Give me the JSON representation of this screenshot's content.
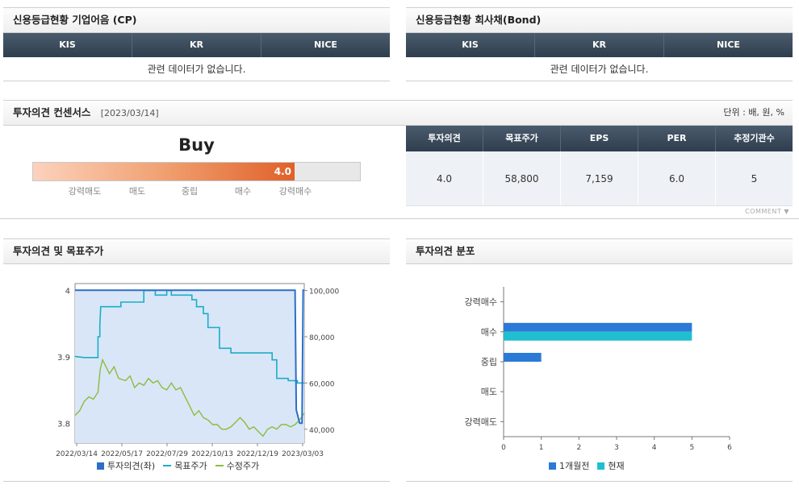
{
  "cp": {
    "title": "신용등급현황 기업어음 (CP)",
    "headers": [
      "KIS",
      "KR",
      "NICE"
    ],
    "empty": "관련 데이터가 없습니다."
  },
  "bond": {
    "title": "신용등급현황 회사채(Bond)",
    "headers": [
      "KIS",
      "KR",
      "NICE"
    ],
    "empty": "관련 데이터가 없습니다."
  },
  "consensus": {
    "title": "투자의견 컨센서스",
    "date": "[2023/03/14]",
    "unit": "단위 : 배, 원, %",
    "rating_text": "Buy",
    "score": "4.0",
    "score_value": 4.0,
    "score_max": 5,
    "scale_labels": [
      "강력매도",
      "매도",
      "중립",
      "매수",
      "강력매수"
    ],
    "table_headers": [
      "투자의견",
      "목표주가",
      "EPS",
      "PER",
      "추정기관수"
    ],
    "table_values": [
      "4.0",
      "58,800",
      "7,159",
      "6.0",
      "5"
    ],
    "comment_label": "COMMENT"
  },
  "opinion_chart": {
    "title": "투자의견 및 목표주가",
    "legend": [
      "투자의견(좌)",
      "목표주가",
      "수정주가"
    ]
  },
  "dist_chart": {
    "title": "투자의견 분포",
    "legend": [
      "1개월전",
      "현재"
    ]
  },
  "chart_data": [
    {
      "type": "line",
      "x_ticks": [
        "2022/03/14",
        "2022/05/17",
        "2022/07/29",
        "2022/10/13",
        "2022/12/19",
        "2023/03/03"
      ],
      "y_left": {
        "ticks": [
          "4",
          "3.9",
          "3.8"
        ],
        "ylim": [
          3.77,
          4.01
        ]
      },
      "y_right": {
        "ticks": [
          "100,000",
          "80,000",
          "60,000",
          "40,000"
        ],
        "ylim": [
          34000,
          103000
        ]
      },
      "colors": {
        "opinion": "#2b6fc8",
        "target": "#1aaec6",
        "price": "#8cbc3c",
        "area": "#d9e6f7"
      },
      "series": [
        {
          "name": "투자의견(좌)",
          "axis": "left",
          "points": [
            [
              0,
              4.0
            ],
            [
              0.96,
              4.0
            ],
            [
              0.965,
              3.82
            ],
            [
              0.98,
              3.8
            ],
            [
              0.99,
              3.8
            ],
            [
              0.995,
              4.0
            ],
            [
              1,
              4.0
            ]
          ]
        },
        {
          "name": "목표주가",
          "axis": "right",
          "points": [
            [
              0,
              71500
            ],
            [
              0.04,
              71000
            ],
            [
              0.1,
              71000
            ],
            [
              0.1,
              73000
            ],
            [
              0.1,
              80000
            ],
            [
              0.108,
              80000
            ],
            [
              0.108,
              85000
            ],
            [
              0.112,
              93000
            ],
            [
              0.2,
              93000
            ],
            [
              0.2,
              95000
            ],
            [
              0.3,
              95000
            ],
            [
              0.3,
              100000
            ],
            [
              0.35,
              100000
            ],
            [
              0.35,
              98000
            ],
            [
              0.4,
              98000
            ],
            [
              0.4,
              100000
            ],
            [
              0.42,
              100000
            ],
            [
              0.42,
              98000
            ],
            [
              0.51,
              98000
            ],
            [
              0.51,
              96000
            ],
            [
              0.53,
              96000
            ],
            [
              0.53,
              93000
            ],
            [
              0.56,
              93000
            ],
            [
              0.56,
              90000
            ],
            [
              0.58,
              90000
            ],
            [
              0.58,
              84000
            ],
            [
              0.63,
              84000
            ],
            [
              0.63,
              75000
            ],
            [
              0.68,
              75000
            ],
            [
              0.68,
              73000
            ],
            [
              0.86,
              73000
            ],
            [
              0.86,
              70000
            ],
            [
              0.88,
              70000
            ],
            [
              0.88,
              62000
            ],
            [
              0.93,
              62000
            ],
            [
              0.93,
              61000
            ],
            [
              0.97,
              61000
            ],
            [
              0.97,
              60000
            ],
            [
              1,
              60000
            ]
          ]
        },
        {
          "name": "수정주가",
          "axis": "right",
          "points": [
            [
              0,
              46000
            ],
            [
              0.02,
              48000
            ],
            [
              0.04,
              52000
            ],
            [
              0.06,
              54000
            ],
            [
              0.08,
              53000
            ],
            [
              0.1,
              56000
            ],
            [
              0.11,
              66000
            ],
            [
              0.12,
              70000
            ],
            [
              0.13,
              68000
            ],
            [
              0.15,
              64000
            ],
            [
              0.17,
              67000
            ],
            [
              0.19,
              62000
            ],
            [
              0.22,
              61000
            ],
            [
              0.24,
              63000
            ],
            [
              0.26,
              58000
            ],
            [
              0.28,
              60000
            ],
            [
              0.3,
              59000
            ],
            [
              0.32,
              62000
            ],
            [
              0.34,
              60000
            ],
            [
              0.36,
              61000
            ],
            [
              0.38,
              58000
            ],
            [
              0.4,
              57000
            ],
            [
              0.42,
              60000
            ],
            [
              0.44,
              57000
            ],
            [
              0.46,
              58000
            ],
            [
              0.48,
              54000
            ],
            [
              0.5,
              50000
            ],
            [
              0.52,
              46000
            ],
            [
              0.54,
              48000
            ],
            [
              0.56,
              45000
            ],
            [
              0.58,
              44000
            ],
            [
              0.6,
              42000
            ],
            [
              0.62,
              42000
            ],
            [
              0.64,
              40000
            ],
            [
              0.66,
              40000
            ],
            [
              0.68,
              41000
            ],
            [
              0.7,
              43000
            ],
            [
              0.72,
              45000
            ],
            [
              0.74,
              43000
            ],
            [
              0.76,
              40000
            ],
            [
              0.78,
              41000
            ],
            [
              0.8,
              39000
            ],
            [
              0.82,
              37000
            ],
            [
              0.84,
              40000
            ],
            [
              0.86,
              41000
            ],
            [
              0.88,
              40000
            ],
            [
              0.9,
              42000
            ],
            [
              0.92,
              42000
            ],
            [
              0.94,
              41000
            ],
            [
              0.96,
              42000
            ],
            [
              0.98,
              44000
            ],
            [
              1,
              47000
            ]
          ]
        }
      ]
    },
    {
      "type": "bar",
      "orientation": "horizontal",
      "categories": [
        "강력매수",
        "매수",
        "중립",
        "매도",
        "강력매도"
      ],
      "xlim": [
        0,
        6
      ],
      "x_ticks": [
        "0",
        "1",
        "2",
        "3",
        "4",
        "5",
        "6"
      ],
      "colors": {
        "prev": "#2b7ad6",
        "curr": "#1fbfcf"
      },
      "series": [
        {
          "name": "1개월전",
          "values": [
            0,
            5,
            1,
            0,
            0
          ]
        },
        {
          "name": "현재",
          "values": [
            0,
            5,
            0,
            0,
            0
          ]
        }
      ]
    }
  ]
}
